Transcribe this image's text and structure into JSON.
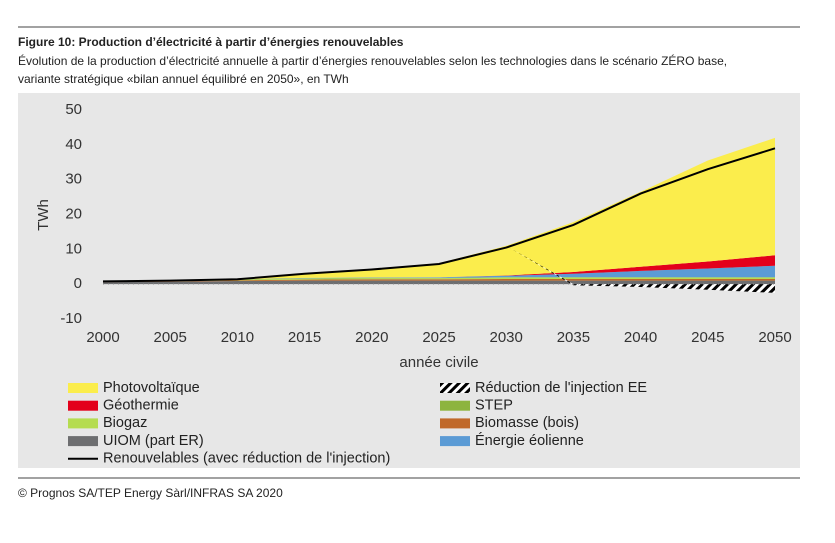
{
  "chart_data": {
    "type": "stacked_area",
    "title": "Figure 10: Production d’électricité à partir d’énergies renouvelables",
    "subtitle": [
      "Évolution de la production d’électricité annuelle à partir d’énergies renouvelables selon les technologies dans le scénario ZÉRO base,",
      "variante stratégique «bilan annuel équilibré en 2050», en TWh"
    ],
    "ylabel": "TWh",
    "xlabel": "année civile",
    "x": [
      2000,
      2005,
      2010,
      2015,
      2020,
      2025,
      2030,
      2035,
      2040,
      2045,
      2050
    ],
    "xlim": [
      2000,
      2050
    ],
    "xticks": [
      2000,
      2005,
      2010,
      2015,
      2020,
      2025,
      2030,
      2035,
      2040,
      2045,
      2050
    ],
    "ylim": [
      -10,
      50
    ],
    "yticks": [
      -10,
      0,
      10,
      20,
      30,
      40,
      50
    ],
    "series": [
      {
        "name": "UIOM (part ER)",
        "color": "#6d6e70",
        "values": [
          0.6,
          0.7,
          0.9,
          1.0,
          1.0,
          1.0,
          1.0,
          1.0,
          1.0,
          1.0,
          1.0
        ]
      },
      {
        "name": "Biomasse (bois)",
        "color": "#c0692a",
        "values": [
          0.1,
          0.1,
          0.2,
          0.3,
          0.4,
          0.4,
          0.5,
          0.5,
          0.5,
          0.5,
          0.5
        ]
      },
      {
        "name": "Biogaz",
        "color": "#b5dc50",
        "values": [
          0.05,
          0.1,
          0.2,
          0.3,
          0.3,
          0.3,
          0.4,
          0.4,
          0.4,
          0.4,
          0.4
        ]
      },
      {
        "name": "STEP",
        "color": "#8db43e",
        "values": [
          0.1,
          0.1,
          0.1,
          0.1,
          0.1,
          0.1,
          0.1,
          0.1,
          0.1,
          0.1,
          0.1
        ]
      },
      {
        "name": "Énergie éolienne",
        "color": "#5b9bd5",
        "values": [
          0,
          0,
          0,
          0.1,
          0.1,
          0.2,
          0.4,
          1.0,
          1.8,
          2.5,
          3.3
        ]
      },
      {
        "name": "Géothermie",
        "color": "#e3001b",
        "values": [
          0,
          0,
          0,
          0,
          0,
          0,
          0.1,
          0.5,
          1.2,
          2.0,
          3.0
        ]
      },
      {
        "name": "Photovoltaïque",
        "color": "#fbed4c",
        "values": [
          0,
          0,
          0.1,
          1.2,
          2.5,
          4.0,
          8.5,
          14.3,
          21.5,
          29.0,
          33.7
        ]
      },
      {
        "name": "Réduction de l'injection EE",
        "color": "#000000",
        "hatch": true,
        "values": [
          0,
          0,
          0,
          0,
          0,
          0,
          0,
          -0.3,
          -0.8,
          -1.6,
          -2.5
        ]
      }
    ],
    "line": {
      "name": "Renouvelables (avec réduction de l'injection)",
      "color": "#000000",
      "values": [
        0.8,
        1.0,
        1.4,
        3.0,
        4.2,
        5.8,
        10.5,
        17.0,
        26.0,
        33.0,
        39.0
      ]
    },
    "source": "© Prognos SA/TEP Energy Sàrl/INFRAS SA 2020"
  }
}
